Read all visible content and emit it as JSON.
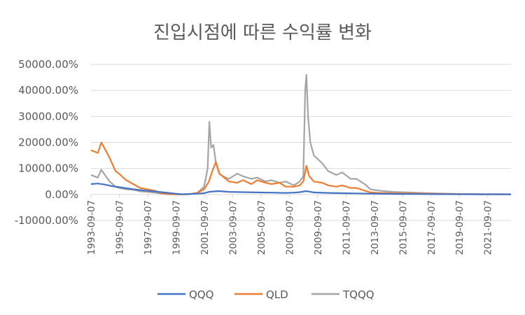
{
  "chart_data": {
    "type": "line",
    "title": "진입시점에 따른 수익률 변화",
    "xlabel": "",
    "ylabel": "",
    "ylim": [
      -10000,
      50000
    ],
    "y_ticks": [
      "-10000.00%",
      "0.00%",
      "10000.00%",
      "20000.00%",
      "30000.00%",
      "40000.00%",
      "50000.00%"
    ],
    "y_tick_values": [
      -10000,
      0,
      10000,
      20000,
      30000,
      40000,
      50000
    ],
    "x_ticks": [
      "1993-09-07",
      "1995-09-07",
      "1997-09-07",
      "1999-09-07",
      "2001-09-07",
      "2003-09-07",
      "2005-09-07",
      "2007-09-07",
      "2009-09-07",
      "2011-09-07",
      "2013-09-07",
      "2015-09-07",
      "2017-09-07",
      "2019-09-07",
      "2021-09-07"
    ],
    "x_range": [
      "1993-09-07",
      "2023-04-30"
    ],
    "legend_position": "bottom",
    "grid": true,
    "colors": {
      "QQQ": "#4472C4",
      "QLD": "#ED7D31",
      "TQQQ": "#A5A5A5",
      "grid": "#D9D9D9",
      "text": "#595959"
    },
    "series": [
      {
        "name": "QQQ",
        "x": [
          "1993-09-07",
          "1994-03-01",
          "1994-09-01",
          "1995-03-01",
          "1995-09-01",
          "1996-03-01",
          "1996-09-01",
          "1997-03-01",
          "1997-09-01",
          "1998-03-01",
          "1998-09-01",
          "1999-03-01",
          "1999-09-01",
          "2000-03-01",
          "2000-09-01",
          "2001-03-01",
          "2001-09-01",
          "2002-01-01",
          "2002-06-01",
          "2002-10-01",
          "2003-06-01",
          "2004-06-01",
          "2005-06-01",
          "2006-06-01",
          "2007-06-01",
          "2008-01-01",
          "2008-06-01",
          "2008-11-20",
          "2009-06-01",
          "2010-06-01",
          "2011-06-01",
          "2012-06-01",
          "2013-06-01",
          "2014-06-01",
          "2015-06-01",
          "2016-06-01",
          "2017-06-01",
          "2018-06-01",
          "2019-06-01",
          "2020-06-01",
          "2021-06-01",
          "2022-06-01",
          "2023-04-30"
        ],
        "values": [
          4000,
          4200,
          3800,
          3200,
          2800,
          2400,
          2000,
          1700,
          1400,
          1200,
          900,
          600,
          300,
          100,
          200,
          300,
          500,
          1000,
          1200,
          1300,
          1000,
          900,
          800,
          700,
          600,
          700,
          900,
          1300,
          800,
          600,
          500,
          400,
          300,
          250,
          200,
          180,
          150,
          120,
          100,
          80,
          60,
          80,
          70
        ]
      },
      {
        "name": "QLD",
        "x": [
          "1993-09-07",
          "1994-03-01",
          "1994-06-01",
          "1994-09-01",
          "1995-01-01",
          "1995-06-01",
          "1995-09-01",
          "1996-03-01",
          "1996-09-01",
          "1997-03-01",
          "1997-09-01",
          "1998-03-01",
          "1998-09-01",
          "1999-03-01",
          "1999-09-01",
          "2000-03-01",
          "2000-09-01",
          "2001-03-01",
          "2001-09-01",
          "2002-01-01",
          "2002-04-01",
          "2002-07-01",
          "2002-10-01",
          "2003-06-01",
          "2004-01-01",
          "2004-06-01",
          "2005-01-01",
          "2005-06-01",
          "2006-01-01",
          "2006-06-01",
          "2007-01-01",
          "2007-06-01",
          "2008-01-01",
          "2008-06-01",
          "2008-09-01",
          "2008-11-20",
          "2009-02-01",
          "2009-06-01",
          "2010-01-01",
          "2010-06-01",
          "2011-01-01",
          "2011-06-01",
          "2012-01-01",
          "2012-06-01",
          "2013-01-01",
          "2013-06-01",
          "2014-01-01",
          "2015-01-01",
          "2016-01-01",
          "2017-01-01",
          "2018-01-01",
          "2019-01-01",
          "2020-01-01",
          "2021-01-01",
          "2022-01-01",
          "2023-04-30"
        ],
        "values": [
          17000,
          16000,
          20000,
          17500,
          14000,
          9000,
          8000,
          5500,
          4000,
          2500,
          2000,
          1500,
          500,
          200,
          100,
          50,
          200,
          600,
          2000,
          5000,
          9000,
          12500,
          8000,
          5000,
          4500,
          5500,
          4000,
          5500,
          4500,
          4000,
          4500,
          3000,
          3000,
          3500,
          5000,
          11000,
          7000,
          5000,
          4500,
          3500,
          3000,
          3500,
          2500,
          2500,
          1500,
          800,
          600,
          500,
          400,
          300,
          250,
          200,
          150,
          100,
          80,
          60
        ]
      },
      {
        "name": "TQQQ",
        "x": [
          "1993-09-07",
          "1994-03-01",
          "1994-06-01",
          "1994-09-01",
          "1995-01-01",
          "1995-06-01",
          "1995-09-01",
          "1996-03-01",
          "1996-09-01",
          "1997-03-01",
          "1997-09-01",
          "1998-03-01",
          "1998-09-01",
          "1999-03-01",
          "1999-09-01",
          "2000-03-01",
          "2000-09-01",
          "2001-03-01",
          "2001-09-01",
          "2001-12-01",
          "2002-01-15",
          "2002-03-01",
          "2002-05-01",
          "2002-07-01",
          "2002-10-01",
          "2003-01-01",
          "2003-06-01",
          "2004-01-01",
          "2004-06-01",
          "2005-01-01",
          "2005-06-01",
          "2006-01-01",
          "2006-06-01",
          "2007-01-01",
          "2007-06-01",
          "2008-01-01",
          "2008-06-01",
          "2008-09-01",
          "2008-10-20",
          "2008-11-20",
          "2009-01-01",
          "2009-03-01",
          "2009-06-01",
          "2010-01-01",
          "2010-06-01",
          "2011-01-01",
          "2011-06-01",
          "2012-01-01",
          "2012-06-01",
          "2013-01-01",
          "2013-06-01",
          "2014-01-01",
          "2015-01-01",
          "2016-01-01",
          "2017-01-01",
          "2018-01-01",
          "2019-01-01",
          "2020-01-01",
          "2021-01-01",
          "2022-01-01",
          "2023-04-30"
        ],
        "values": [
          7500,
          6500,
          9500,
          7500,
          5000,
          3000,
          2500,
          2000,
          1800,
          1200,
          1000,
          700,
          300,
          100,
          50,
          30,
          100,
          500,
          3000,
          10000,
          28000,
          18000,
          19000,
          12000,
          8000,
          7000,
          6000,
          8000,
          7000,
          6000,
          6500,
          5000,
          5500,
          4500,
          5000,
          3500,
          5000,
          7000,
          40000,
          46000,
          30000,
          20000,
          15000,
          12000,
          9000,
          7500,
          8500,
          6000,
          6000,
          4000,
          2000,
          1500,
          1000,
          800,
          600,
          400,
          300,
          200,
          150,
          100,
          80
        ]
      }
    ]
  }
}
